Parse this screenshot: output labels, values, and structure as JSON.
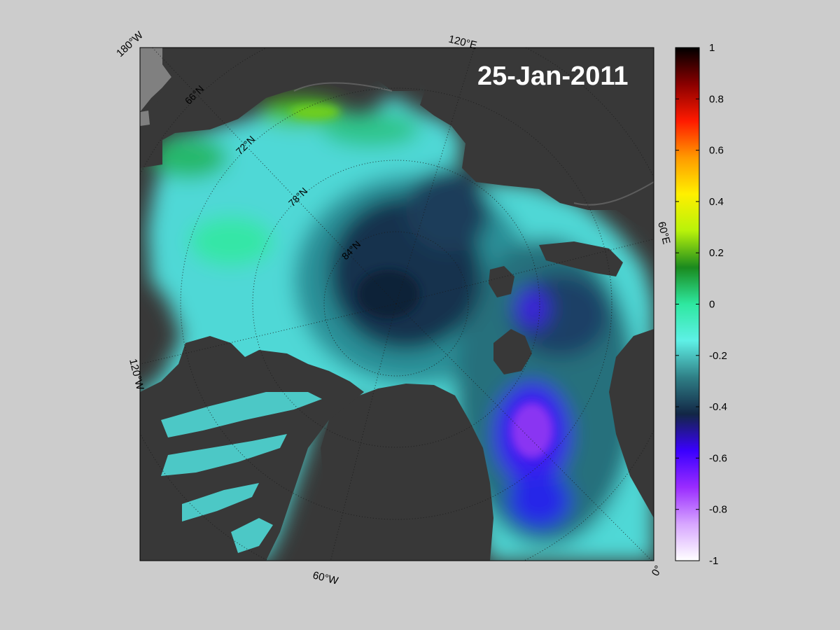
{
  "map": {
    "date": "25-Jan-2011",
    "lon_labels": {
      "w180": "180°W",
      "e120": "120°E",
      "e60": "60°E",
      "w120": "120°W",
      "w60": "60°W",
      "zero": "0°"
    },
    "lat_labels": {
      "n66": "66°N",
      "n72": "72°N",
      "n78": "78°N",
      "n84": "84°N"
    },
    "colors": {
      "land": "#383838",
      "outside": "#808080",
      "background": "#cccccc"
    }
  },
  "colorbar": {
    "ticks": [
      "1",
      "0.8",
      "0.6",
      "0.4",
      "0.2",
      "0",
      "-0.2",
      "-0.4",
      "-0.6",
      "-0.8",
      "-1"
    ],
    "range": [
      -1,
      1
    ],
    "colors": [
      "#ffffff",
      "#d7a6ff",
      "#9a2cff",
      "#3a00ff",
      "#122645",
      "#2f7f86",
      "#5ef0e6",
      "#2ee8a0",
      "#1a8a1e",
      "#b8f20a",
      "#fff000",
      "#ff9a00",
      "#ff1a00",
      "#8a0000",
      "#000000"
    ]
  }
}
